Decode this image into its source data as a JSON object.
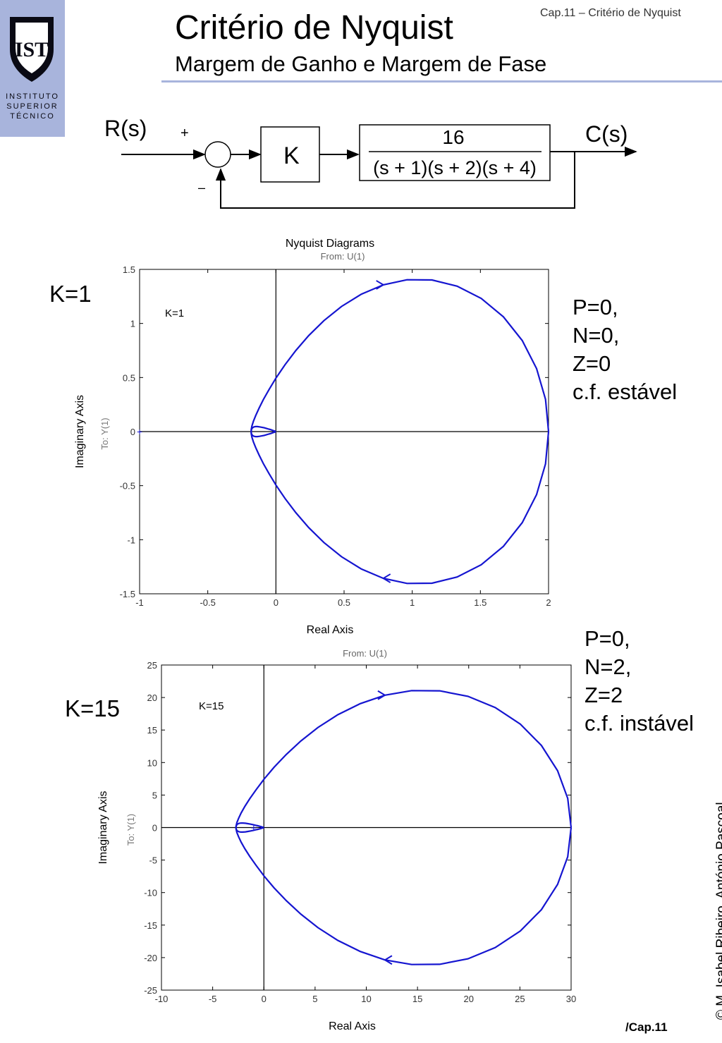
{
  "header": {
    "logo_text": [
      "INSTITUTO",
      "SUPERIOR",
      "TÉCNICO"
    ],
    "title": "Critério de Nyquist",
    "subtitle": "Margem de Ganho e Margem de Fase",
    "chapter_ref": "Cap.11 – Critério de Nyquist"
  },
  "block_diagram": {
    "input": "R(s)",
    "output": "C(s)",
    "plus": "+",
    "minus": "–",
    "gain": "K",
    "tf_numerator": "16",
    "tf_denominator": "(s + 1)(s + 2)(s + 4)"
  },
  "chart_data": [
    {
      "type": "line",
      "title": "Nyquist Diagrams",
      "subtitle": "From: U(1)",
      "xlabel": "Real Axis",
      "ylabel": "Imaginary Axis",
      "ylabel2": "To: Y(1)",
      "xlim": [
        -1,
        2
      ],
      "ylim": [
        -1.5,
        1.5
      ],
      "xticks": [
        -1,
        -0.5,
        0,
        0.5,
        1,
        1.5,
        2
      ],
      "yticks": [
        -1.5,
        -1,
        -0.5,
        0,
        0.5,
        1,
        1.5
      ],
      "xtick_labels": [
        "-1",
        "-0.5",
        "0",
        "0.5",
        "1",
        "1.5",
        "2"
      ],
      "ytick_labels": [
        "-1.5",
        "-1",
        "-0.5",
        "0",
        "0.5",
        "1",
        "1.5"
      ],
      "annotation": "K=1",
      "series_color": "#1515d0",
      "grid": false,
      "series": [
        {
          "x": [
            2,
            1.978,
            1.912,
            1.807,
            1.669,
            1.506,
            1.329,
            1.145,
            0.962,
            0.788,
            0.627,
            0.481,
            0.352,
            0.241,
            0.146,
            0.067,
            0.002,
            -0.05,
            -0.092,
            -0.124,
            -0.148,
            -0.165,
            -0.176,
            -0.181,
            -0.181,
            -0.178,
            -0.171,
            -0.162,
            -0.15,
            -0.136,
            -0.12,
            -0.103,
            -0.086,
            -0.069,
            -0.053,
            -0.039,
            -0.027,
            -0.017,
            -0.009,
            -0.003,
            0
          ],
          "y": [
            0,
            -0.299,
            -0.583,
            -0.842,
            -1.061,
            -1.231,
            -1.345,
            -1.402,
            -1.404,
            -1.357,
            -1.271,
            -1.157,
            -1.026,
            -0.888,
            -0.75,
            -0.619,
            -0.498,
            -0.39,
            -0.296,
            -0.216,
            -0.149,
            -0.095,
            -0.052,
            -0.018,
            0.007,
            0.024,
            0.036,
            0.043,
            0.046,
            0.046,
            0.044,
            0.04,
            0.035,
            0.029,
            0.023,
            0.018,
            0.013,
            0.008,
            0.005,
            0.002,
            0
          ]
        }
      ]
    },
    {
      "type": "line",
      "title": "",
      "subtitle": "From: U(1)",
      "xlabel": "Real Axis",
      "ylabel": "Imaginary Axis",
      "ylabel2": "To: Y(1)",
      "xlim": [
        -10,
        30
      ],
      "ylim": [
        -25,
        25
      ],
      "xticks": [
        -10,
        -5,
        0,
        5,
        10,
        15,
        20,
        25,
        30
      ],
      "yticks": [
        -25,
        -20,
        -15,
        -10,
        -5,
        0,
        5,
        10,
        15,
        20,
        25
      ],
      "xtick_labels": [
        "-10",
        "-5",
        "0",
        "5",
        "10",
        "15",
        "20",
        "25",
        "30"
      ],
      "ytick_labels": [
        "-25",
        "-20",
        "-15",
        "-10",
        "-5",
        "0",
        "5",
        "10",
        "15",
        "20",
        "25"
      ],
      "annotation": "K=15",
      "series_color": "#1515d0",
      "grid": false,
      "series": [
        {
          "x": [
            30,
            29.67,
            28.68,
            27.1,
            25.04,
            22.59,
            19.93,
            17.17,
            14.43,
            11.82,
            9.41,
            7.22,
            5.28,
            3.61,
            2.19,
            1.0,
            0.03,
            -0.75,
            -1.38,
            -1.86,
            -2.22,
            -2.47,
            -2.63,
            -2.71,
            -2.72,
            -2.67,
            -2.57,
            -2.43,
            -2.25,
            -2.04,
            -1.8,
            -1.55,
            -1.29,
            -1.04,
            -0.8,
            -0.58,
            -0.4,
            -0.25,
            -0.13,
            -0.04,
            0
          ],
          "y": [
            0,
            -4.49,
            -8.74,
            -12.63,
            -15.91,
            -18.46,
            -20.18,
            -21.03,
            -21.06,
            -20.36,
            -19.06,
            -17.35,
            -15.39,
            -13.32,
            -11.25,
            -9.28,
            -7.47,
            -5.85,
            -4.44,
            -3.24,
            -2.24,
            -1.42,
            -0.78,
            -0.27,
            0.11,
            0.37,
            0.54,
            0.64,
            0.69,
            0.69,
            0.66,
            0.6,
            0.52,
            0.44,
            0.35,
            0.27,
            0.19,
            0.13,
            0.07,
            0.03,
            0
          ]
        }
      ]
    }
  ],
  "panels": [
    {
      "label": "K=1",
      "status": [
        "P=0,",
        "N=0,",
        "Z=0",
        "c.f. estável"
      ]
    },
    {
      "label": "K=15",
      "status": [
        "P=0,",
        "N=2,",
        "Z=2",
        "c.f. instável"
      ]
    }
  ],
  "footer": {
    "copyright": "© M. Isabel Ribeiro, António Pascoal",
    "chapter": "/Cap.11"
  }
}
